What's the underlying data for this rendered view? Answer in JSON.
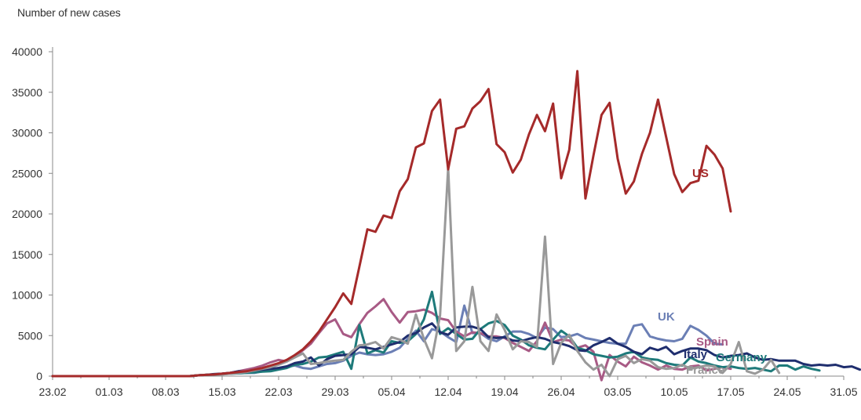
{
  "chart_data": {
    "type": "line",
    "ylabel": "Number of new cases",
    "xlabel": "",
    "ylim": [
      0,
      40000
    ],
    "yticks": [
      0,
      5000,
      10000,
      15000,
      20000,
      25000,
      30000,
      35000,
      40000
    ],
    "xlim_day": [
      0,
      98
    ],
    "xtick_labels": [
      "23.02",
      "01.03",
      "08.03",
      "15.03",
      "22.03",
      "29.03",
      "05.04",
      "12.04",
      "19.04",
      "26.04",
      "03.05",
      "10.05",
      "17.05",
      "24.05",
      "31.05"
    ],
    "grid": false,
    "legend": "direct labels at line ends",
    "series": [
      {
        "name": "UK",
        "color": "#6B7FB5",
        "values": [
          0,
          0,
          0,
          0,
          0,
          0,
          0,
          0,
          0,
          0,
          0,
          0,
          0,
          0,
          0,
          0,
          0,
          0,
          100,
          150,
          200,
          250,
          300,
          350,
          400,
          400,
          600,
          800,
          1000,
          1200,
          1300,
          1000,
          900,
          1200,
          1500,
          1600,
          1900,
          2500,
          2900,
          2700,
          2600,
          2700,
          3000,
          3500,
          4600,
          5600,
          4300,
          5800,
          5500,
          4800,
          4200,
          8700,
          5300,
          5300,
          4600,
          4300,
          4900,
          5500,
          5500,
          5200,
          4700,
          6000,
          5800,
          4800,
          4900,
          5200,
          4700,
          4500,
          4300,
          4100,
          4000,
          4000,
          6200,
          6400,
          4900,
          4600,
          4400,
          4300,
          4600,
          6200,
          5700,
          5000,
          4000,
          3900
        ]
      },
      {
        "name": "Spain",
        "color": "#A85A85",
        "values": [
          0,
          0,
          0,
          0,
          0,
          0,
          0,
          0,
          0,
          0,
          0,
          0,
          0,
          0,
          0,
          0,
          0,
          0,
          100,
          150,
          200,
          300,
          400,
          600,
          800,
          1000,
          1300,
          1700,
          2000,
          1800,
          2400,
          3200,
          4000,
          5300,
          6500,
          7000,
          5200,
          4800,
          6400,
          7800,
          8600,
          9500,
          7900,
          6600,
          7900,
          8000,
          8200,
          7800,
          7100,
          6900,
          5500,
          4900,
          5400,
          5300,
          4900,
          4900,
          4700,
          4100,
          3600,
          3100,
          4300,
          6600,
          4200,
          4500,
          4400,
          3500,
          3800,
          3000,
          -500,
          2600,
          1800,
          1200,
          2400,
          1700,
          1300,
          800,
          1300,
          900,
          800,
          1200,
          1300,
          700,
          900,
          1100,
          900
        ]
      },
      {
        "name": "Germany",
        "color": "#1E7A7A",
        "values": [
          0,
          0,
          0,
          0,
          0,
          0,
          0,
          0,
          0,
          0,
          0,
          0,
          0,
          0,
          0,
          0,
          0,
          0,
          100,
          150,
          200,
          250,
          300,
          350,
          400,
          450,
          550,
          600,
          800,
          1000,
          1400,
          1500,
          1800,
          2300,
          2400,
          2700,
          3000,
          900,
          6300,
          2800,
          3200,
          2900,
          4300,
          4100,
          4300,
          5200,
          7000,
          10400,
          5200,
          5900,
          5200,
          4500,
          4600,
          5800,
          6500,
          6800,
          6300,
          5000,
          4500,
          3800,
          3500,
          3300,
          4500,
          5600,
          4900,
          3500,
          3200,
          2700,
          2500,
          2300,
          2400,
          2800,
          3000,
          2300,
          2100,
          2000,
          1600,
          1400,
          1300,
          2300,
          1800,
          1600,
          1300,
          1100,
          1200,
          1000,
          900,
          1000,
          800,
          600,
          1300,
          1300,
          800,
          1200,
          900,
          700
        ]
      },
      {
        "name": "Italy",
        "color": "#1F2E6E",
        "values": [
          0,
          0,
          0,
          0,
          0,
          0,
          0,
          0,
          0,
          0,
          0,
          0,
          0,
          0,
          0,
          0,
          0,
          0,
          100,
          150,
          250,
          300,
          400,
          600,
          500,
          700,
          800,
          900,
          1000,
          1200,
          1600,
          1800,
          2300,
          1300,
          2100,
          2500,
          2600,
          2700,
          3600,
          3500,
          3300,
          3600,
          3900,
          4200,
          5000,
          5300,
          6000,
          6500,
          5400,
          5100,
          6000,
          6100,
          6100,
          5800,
          4800,
          4700,
          4800,
          4400,
          4300,
          4600,
          4800,
          4600,
          4200,
          4000,
          3700,
          3200,
          3100,
          3800,
          4200,
          4700,
          4000,
          3600,
          3000,
          2700,
          3500,
          3200,
          3600,
          2700,
          3100,
          3400,
          3400,
          3200,
          2600,
          2300,
          2500,
          2600,
          2800,
          2300,
          2000,
          2100,
          1900,
          1900,
          1900,
          1500,
          1300,
          1400,
          1300,
          1400,
          1100,
          1200,
          800
        ]
      },
      {
        "name": "France",
        "color": "#999999",
        "values": [
          0,
          0,
          0,
          0,
          0,
          0,
          0,
          0,
          0,
          0,
          0,
          0,
          0,
          0,
          0,
          0,
          0,
          0,
          100,
          150,
          200,
          200,
          300,
          400,
          500,
          700,
          900,
          1100,
          1400,
          1800,
          2300,
          2800,
          1500,
          1600,
          1800,
          1900,
          2000,
          3000,
          3800,
          3900,
          4200,
          3400,
          4800,
          4500,
          4000,
          7600,
          4600,
          2200,
          7500,
          25700,
          3100,
          4300,
          11000,
          4300,
          3100,
          7600,
          5700,
          3300,
          4300,
          4200,
          3600,
          17200,
          1500,
          4100,
          5100,
          3100,
          1700,
          800,
          1400,
          0,
          2100,
          2500,
          1600,
          2100,
          1900,
          1100,
          900,
          1000,
          1400,
          900,
          1100,
          1300,
          1200,
          400,
          1500,
          4200,
          600,
          300,
          800,
          2000,
          400
        ]
      },
      {
        "name": "US",
        "color": "#A52A2A",
        "values": [
          0,
          0,
          0,
          0,
          0,
          0,
          0,
          0,
          0,
          0,
          0,
          0,
          0,
          0,
          0,
          0,
          0,
          0,
          100,
          150,
          200,
          300,
          400,
          500,
          600,
          800,
          1000,
          1300,
          1600,
          2000,
          2600,
          3300,
          4300,
          5500,
          7000,
          8500,
          10200,
          8900,
          13500,
          18100,
          17800,
          19800,
          19500,
          22800,
          24300,
          28200,
          28700,
          32700,
          34100,
          25500,
          30500,
          30800,
          33000,
          33900,
          35400,
          28600,
          27600,
          25100,
          26700,
          29800,
          32200,
          30200,
          33600,
          24400,
          27900,
          37600,
          21900,
          27200,
          32200,
          33700,
          26800,
          22500,
          24000,
          27400,
          30000,
          34100,
          29500,
          24900,
          22700,
          23800,
          24100,
          28400,
          27300,
          25600,
          20300
        ]
      }
    ]
  }
}
